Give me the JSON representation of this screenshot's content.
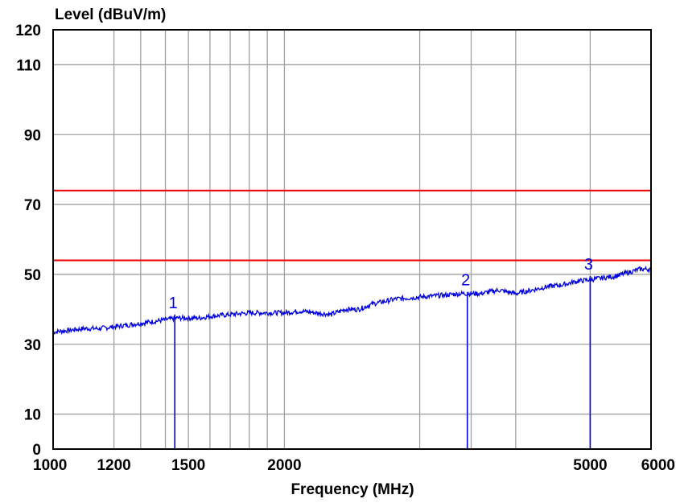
{
  "chart_data": {
    "type": "line",
    "title": "",
    "ylabel": "Level (dBuV/m)",
    "xlabel": "Frequency (MHz)",
    "x_scale": "log",
    "xlim": [
      1000,
      6000
    ],
    "ylim": [
      0,
      120
    ],
    "y_ticks": [
      {
        "value": 0,
        "label": "0"
      },
      {
        "value": 10,
        "label": "10"
      },
      {
        "value": 30,
        "label": "30"
      },
      {
        "value": 50,
        "label": "50"
      },
      {
        "value": 70,
        "label": "70"
      },
      {
        "value": 90,
        "label": "90"
      },
      {
        "value": 110,
        "label": "110"
      },
      {
        "value": 120,
        "label": "120"
      }
    ],
    "y_gridlines": [
      10,
      30,
      50,
      70,
      90,
      110
    ],
    "x_ticks": [
      {
        "value": 1000,
        "label": "1000"
      },
      {
        "value": 1200,
        "label": "1200"
      },
      {
        "value": 1500,
        "label": "1500"
      },
      {
        "value": 2000,
        "label": "2000"
      },
      {
        "value": 5000,
        "label": "5000"
      },
      {
        "value": 6000,
        "label": "6000"
      }
    ],
    "x_gridlines": [
      1200,
      1300,
      1400,
      1500,
      1600,
      1700,
      1800,
      1900,
      2000,
      3000,
      3500,
      4000,
      5000
    ],
    "grid": true,
    "limit_lines": [
      {
        "value": 74,
        "color": "#ee0000"
      },
      {
        "value": 54,
        "color": "#ee0000"
      }
    ],
    "series": [
      {
        "color": "#0000dd",
        "points": [
          [
            1000,
            33.5
          ],
          [
            1050,
            34
          ],
          [
            1100,
            34.5
          ],
          [
            1150,
            34.5
          ],
          [
            1200,
            35
          ],
          [
            1250,
            35.5
          ],
          [
            1300,
            36
          ],
          [
            1350,
            36.5
          ],
          [
            1400,
            37
          ],
          [
            1450,
            37.5
          ],
          [
            1500,
            37.5
          ],
          [
            1550,
            37.5
          ],
          [
            1600,
            38
          ],
          [
            1700,
            38.5
          ],
          [
            1800,
            39
          ],
          [
            1900,
            39
          ],
          [
            2000,
            39
          ],
          [
            2100,
            39.5
          ],
          [
            2200,
            39
          ],
          [
            2300,
            38.5
          ],
          [
            2400,
            40
          ],
          [
            2500,
            40
          ],
          [
            2600,
            41.5
          ],
          [
            2800,
            43
          ],
          [
            3000,
            43.5
          ],
          [
            3200,
            44
          ],
          [
            3400,
            44.5
          ],
          [
            3600,
            44.5
          ],
          [
            3800,
            45.5
          ],
          [
            4000,
            44.5
          ],
          [
            4200,
            45.5
          ],
          [
            4400,
            46.5
          ],
          [
            4600,
            47
          ],
          [
            4800,
            48
          ],
          [
            5000,
            48.5
          ],
          [
            5200,
            49
          ],
          [
            5400,
            49.5
          ],
          [
            5600,
            50.5
          ],
          [
            5800,
            51.5
          ],
          [
            6000,
            51.5
          ]
        ]
      }
    ],
    "markers": [
      {
        "label": "1",
        "x": 1440,
        "y": 38.5,
        "color": "#0000dd"
      },
      {
        "label": "2",
        "x": 3460,
        "y": 45,
        "color": "#0000dd"
      },
      {
        "label": "3",
        "x": 5000,
        "y": 49.5,
        "color": "#0000dd"
      }
    ]
  }
}
